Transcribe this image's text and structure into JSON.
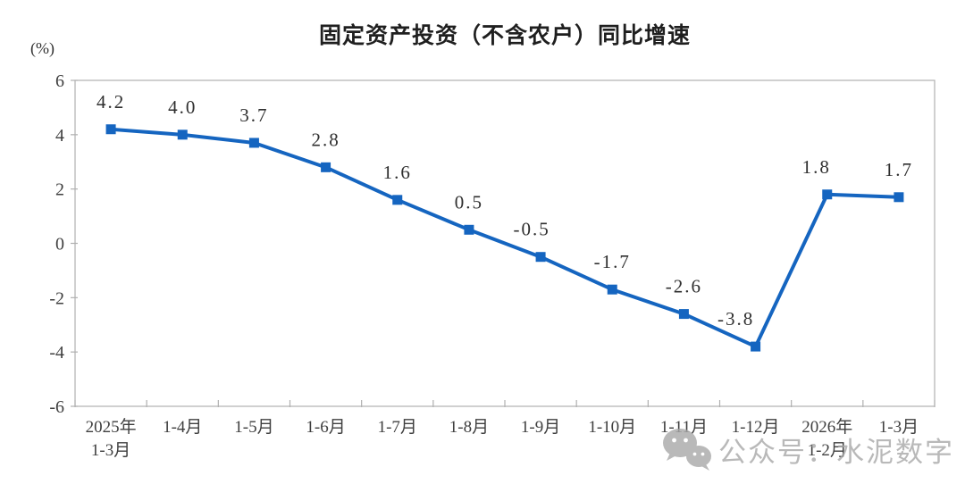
{
  "chart": {
    "title": "固定资产投资（不含农户）同比增速",
    "unit_label": "(%)",
    "watermark": {
      "icon": "wechat-icon",
      "text": "公众号：水泥数字"
    }
  },
  "chart_data": {
    "type": "line",
    "title": "固定资产投资（不含农户）同比增速",
    "xlabel": "",
    "ylabel": "(%)",
    "categories": [
      [
        "2025年",
        "1-3月"
      ],
      [
        "1-4月"
      ],
      [
        "1-5月"
      ],
      [
        "1-6月"
      ],
      [
        "1-7月"
      ],
      [
        "1-8月"
      ],
      [
        "1-9月"
      ],
      [
        "1-10月"
      ],
      [
        "1-11月"
      ],
      [
        "1-12月"
      ],
      [
        "2026年",
        "1-2月"
      ],
      [
        "1-3月"
      ]
    ],
    "values": [
      4.2,
      4.0,
      3.7,
      2.8,
      1.6,
      0.5,
      -0.5,
      -1.7,
      -2.6,
      -3.8,
      1.8,
      1.7
    ],
    "data_labels": [
      "4.2",
      "4.0",
      "3.7",
      "2.8",
      "1.6",
      "0.5",
      "-0.5",
      "-1.7",
      "-2.6",
      "-3.8",
      "1.8",
      "1.7"
    ],
    "ylim": [
      -6,
      6
    ],
    "ytick_step": 2,
    "ytick_labels": [
      "6",
      "4",
      "2",
      "0",
      "-2",
      "-4",
      "-6"
    ],
    "grid": false,
    "legend": "none",
    "line_color": "#1565C0",
    "marker": "square",
    "axis_color": "#b0b0b0",
    "tick_label_color": "#3f3f3f",
    "data_label_color": "#2f2f2f"
  }
}
